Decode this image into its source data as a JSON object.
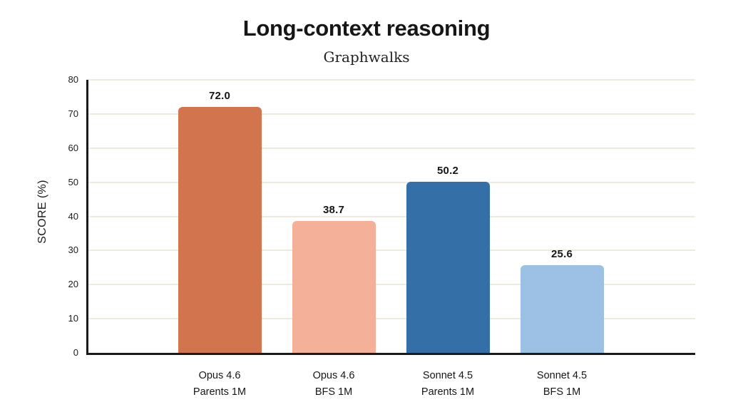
{
  "chart_data": {
    "type": "bar",
    "title": "Long-context reasoning",
    "subtitle": "Graphwalks",
    "xlabel": "",
    "ylabel": "SCORE (%)",
    "ylim": [
      0,
      80
    ],
    "yticks": [
      0,
      10,
      20,
      30,
      40,
      50,
      60,
      70,
      80
    ],
    "grid": "horizontal",
    "legend": "none",
    "colors": {
      "gridline": "#efeae1",
      "axis": "#1a1a1a",
      "text": "#161616"
    },
    "categories": [
      "Opus 4.6 Parents 1M",
      "Opus 4.6 BFS 1M",
      "Sonnet 4.5 Parents 1M",
      "Sonnet 4.5 BFS 1M"
    ],
    "values": [
      72.0,
      38.7,
      50.2,
      25.6
    ],
    "bars": [
      {
        "label_line1": "Opus 4.6",
        "label_line2": "Parents 1M",
        "value": 72.0,
        "value_label": "72.0",
        "color": "#d2744e"
      },
      {
        "label_line1": "Opus 4.6",
        "label_line2": "BFS 1M",
        "value": 38.7,
        "value_label": "38.7",
        "color": "#f4b099"
      },
      {
        "label_line1": "Sonnet 4.5",
        "label_line2": "Parents 1M",
        "value": 50.2,
        "value_label": "50.2",
        "color": "#346fa7"
      },
      {
        "label_line1": "Sonnet 4.5",
        "label_line2": "BFS 1M",
        "value": 25.6,
        "value_label": "25.6",
        "color": "#9cc1e5"
      }
    ]
  }
}
